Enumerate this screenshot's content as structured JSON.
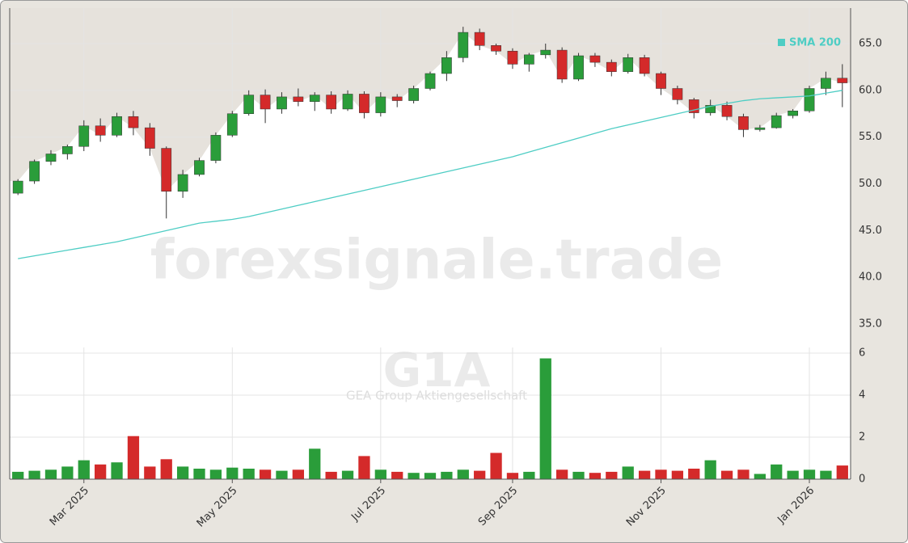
{
  "chart_data": {
    "type": "candlestick",
    "watermark": "forexsignale.trade",
    "symbol": "G1A",
    "company": "GEA Group Aktiengesellschaft",
    "categories": [
      null,
      null,
      null,
      null,
      "Mar 2025",
      null,
      null,
      null,
      null,
      null,
      null,
      null,
      null,
      "May 2025",
      null,
      null,
      null,
      null,
      null,
      null,
      null,
      null,
      "Jul 2025",
      null,
      null,
      null,
      null,
      null,
      null,
      null,
      "Sep 2025",
      null,
      null,
      null,
      null,
      null,
      null,
      null,
      null,
      "Nov 2025",
      null,
      null,
      null,
      null,
      null,
      null,
      null,
      null,
      "Jan 2026",
      null,
      null
    ],
    "open": [
      49.0,
      50.3,
      52.4,
      53.2,
      54.0,
      56.2,
      55.2,
      57.2,
      56.0,
      53.8,
      49.2,
      51.0,
      52.5,
      55.2,
      57.5,
      59.5,
      58.0,
      59.3,
      58.8,
      59.5,
      58.0,
      59.6,
      57.6,
      59.3,
      58.9,
      60.2,
      61.8,
      63.5,
      66.2,
      64.8,
      64.2,
      62.8,
      63.8,
      64.3,
      61.2,
      63.7,
      63.0,
      62.0,
      63.5,
      61.8,
      60.2,
      59.0,
      57.6,
      58.4,
      57.2,
      55.8,
      56.0,
      57.3,
      57.8,
      60.2,
      61.3
    ],
    "high": [
      50.5,
      52.6,
      53.6,
      54.2,
      56.8,
      57.0,
      57.6,
      57.8,
      56.5,
      54.0,
      51.5,
      52.8,
      55.5,
      57.8,
      60.0,
      60.1,
      59.8,
      60.2,
      59.8,
      59.9,
      60.0,
      59.9,
      59.8,
      59.6,
      60.5,
      62.0,
      64.2,
      66.8,
      66.6,
      65.0,
      64.5,
      64.0,
      65.0,
      64.6,
      64.0,
      64.0,
      63.3,
      63.9,
      63.8,
      62.0,
      60.5,
      59.2,
      59.0,
      58.8,
      57.5,
      56.3,
      57.6,
      58.0,
      60.5,
      62.0,
      62.8
    ],
    "low": [
      48.8,
      50.0,
      52.0,
      52.6,
      53.5,
      54.5,
      55.0,
      55.2,
      53.0,
      46.3,
      48.5,
      50.8,
      52.2,
      55.0,
      57.3,
      56.5,
      57.5,
      58.3,
      57.8,
      57.5,
      57.8,
      57.0,
      57.2,
      58.2,
      58.6,
      60.0,
      61.0,
      63.0,
      64.3,
      63.8,
      62.3,
      62.0,
      63.4,
      60.8,
      61.0,
      62.5,
      61.5,
      61.8,
      61.5,
      59.5,
      58.5,
      57.0,
      57.3,
      56.8,
      55.0,
      55.6,
      55.9,
      57.0,
      57.6,
      59.5,
      58.2
    ],
    "close": [
      50.3,
      52.4,
      53.2,
      54.0,
      56.2,
      55.2,
      57.2,
      56.0,
      53.8,
      49.2,
      51.0,
      52.5,
      55.2,
      57.5,
      59.5,
      58.0,
      59.3,
      58.8,
      59.5,
      58.0,
      59.6,
      57.6,
      59.3,
      58.9,
      60.2,
      61.8,
      63.5,
      66.2,
      64.8,
      64.2,
      62.8,
      63.8,
      64.3,
      61.2,
      63.7,
      63.0,
      62.0,
      63.5,
      61.8,
      60.2,
      59.0,
      57.6,
      58.4,
      57.2,
      55.8,
      56.0,
      57.3,
      57.8,
      60.2,
      61.3,
      60.8
    ],
    "up_color": "#2a9d3a",
    "down_color": "#d42a2a",
    "series": [
      {
        "name": "SMA 200",
        "color": "#4ecdc4",
        "values": [
          42.0,
          42.3,
          42.6,
          42.9,
          43.2,
          43.5,
          43.8,
          44.2,
          44.6,
          45.0,
          45.4,
          45.8,
          46.0,
          46.2,
          46.5,
          46.9,
          47.3,
          47.7,
          48.1,
          48.5,
          48.9,
          49.3,
          49.7,
          50.1,
          50.5,
          50.9,
          51.3,
          51.7,
          52.1,
          52.5,
          52.9,
          53.4,
          53.9,
          54.4,
          54.9,
          55.4,
          55.9,
          56.3,
          56.7,
          57.1,
          57.5,
          57.9,
          58.3,
          58.6,
          58.9,
          59.1,
          59.2,
          59.3,
          59.4,
          59.7,
          60.0
        ]
      }
    ],
    "ylim": [
      32.5,
      68.8
    ],
    "yticks": [
      {
        "value": 35,
        "label": "35.0"
      },
      {
        "value": 40,
        "label": "40.0"
      },
      {
        "value": 45,
        "label": "45.0"
      },
      {
        "value": 50,
        "label": "50.0"
      },
      {
        "value": 55,
        "label": "55.0"
      },
      {
        "value": 60,
        "label": "60.0"
      },
      {
        "value": 65,
        "label": "65.0"
      }
    ],
    "volume": {
      "values": [
        0.35,
        0.4,
        0.45,
        0.6,
        0.9,
        0.7,
        0.8,
        2.05,
        0.6,
        0.95,
        0.6,
        0.5,
        0.45,
        0.55,
        0.5,
        0.45,
        0.4,
        0.45,
        1.45,
        0.35,
        0.4,
        1.1,
        0.45,
        0.35,
        0.3,
        0.3,
        0.35,
        0.45,
        0.4,
        1.25,
        0.3,
        0.35,
        5.75,
        0.45,
        0.35,
        0.3,
        0.35,
        0.6,
        0.4,
        0.45,
        0.4,
        0.5,
        0.9,
        0.4,
        0.45,
        0.25,
        0.7,
        0.4,
        0.45,
        0.4,
        0.65
      ],
      "ylim": [
        0,
        6.27
      ],
      "yticks": [
        0,
        2,
        4,
        6
      ]
    },
    "grid": true
  }
}
